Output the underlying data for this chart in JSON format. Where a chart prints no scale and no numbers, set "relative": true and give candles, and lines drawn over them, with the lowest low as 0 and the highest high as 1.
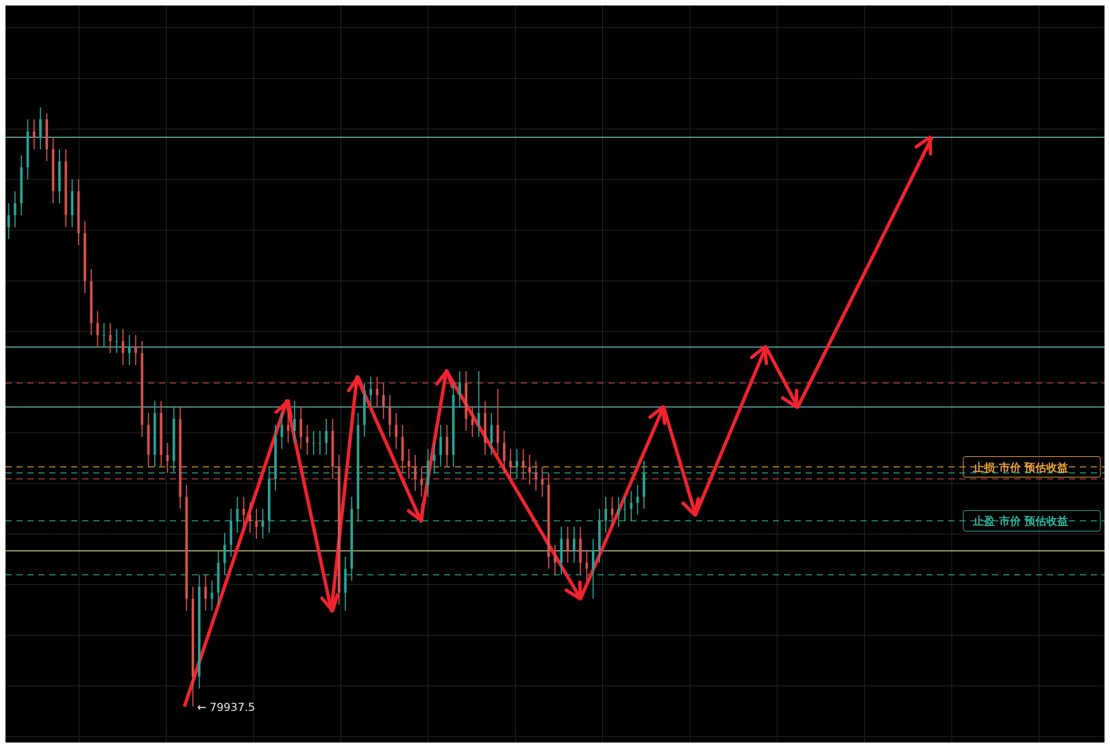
{
  "chart_data": {
    "type": "candlestick",
    "relative": true,
    "tick_labels": false,
    "grid": true,
    "categories": [
      null,
      null,
      null,
      null,
      null,
      null,
      null,
      null,
      null,
      null,
      null,
      null,
      null,
      null,
      null,
      null,
      null,
      null,
      null,
      null,
      null,
      null,
      null,
      null,
      null,
      null,
      null,
      null,
      null,
      null,
      null,
      null,
      null,
      null,
      null,
      null,
      null,
      null,
      null,
      null,
      null,
      null,
      null,
      null,
      null,
      null,
      null,
      null,
      null,
      null,
      null,
      null,
      null,
      null,
      null,
      null,
      null,
      null,
      null,
      null,
      null,
      null,
      null,
      null,
      null,
      null,
      null,
      null,
      null,
      null,
      null,
      null,
      null,
      null,
      null,
      null,
      null,
      null,
      null,
      null,
      null,
      null,
      null,
      null,
      null,
      null,
      null,
      null,
      null,
      null,
      null,
      null,
      null,
      null,
      null,
      null,
      null,
      null,
      null,
      null,
      null,
      null,
      null,
      null,
      null,
      null,
      null,
      null,
      null,
      null,
      null,
      null,
      null,
      null,
      null,
      null,
      null,
      null,
      null,
      null,
      null,
      null,
      null,
      null,
      null,
      null,
      null,
      null,
      null,
      null,
      null,
      null,
      null,
      null,
      null,
      null,
      null,
      null,
      null,
      null,
      null,
      null,
      null,
      null,
      null,
      null,
      null,
      null,
      null,
      null,
      null,
      null,
      null,
      null,
      null,
      null,
      null,
      null,
      null,
      null,
      null,
      null,
      null,
      null,
      null,
      null,
      null,
      null,
      null,
      null,
      null,
      null,
      null
    ],
    "ohlc": [
      [
        0.8,
        0.84,
        0.78,
        0.82
      ],
      [
        0.82,
        0.86,
        0.8,
        0.84
      ],
      [
        0.84,
        0.92,
        0.82,
        0.9
      ],
      [
        0.9,
        0.98,
        0.88,
        0.96
      ],
      [
        0.96,
        0.98,
        0.93,
        0.95
      ],
      [
        0.95,
        1.0,
        0.93,
        0.98
      ],
      [
        0.98,
        0.99,
        0.91,
        0.93
      ],
      [
        0.93,
        0.95,
        0.84,
        0.86
      ],
      [
        0.86,
        0.93,
        0.84,
        0.91
      ],
      [
        0.91,
        0.93,
        0.8,
        0.82
      ],
      [
        0.82,
        0.88,
        0.8,
        0.86
      ],
      [
        0.86,
        0.88,
        0.77,
        0.79
      ],
      [
        0.79,
        0.81,
        0.69,
        0.71
      ],
      [
        0.71,
        0.73,
        0.62,
        0.64
      ],
      [
        0.64,
        0.66,
        0.6,
        0.62
      ],
      [
        0.62,
        0.64,
        0.6,
        0.62
      ],
      [
        0.62,
        0.64,
        0.59,
        0.61
      ],
      [
        0.61,
        0.63,
        0.59,
        0.61
      ],
      [
        0.61,
        0.63,
        0.57,
        0.59
      ],
      [
        0.59,
        0.62,
        0.57,
        0.6
      ],
      [
        0.6,
        0.62,
        0.57,
        0.59
      ],
      [
        0.59,
        0.61,
        0.45,
        0.47
      ],
      [
        0.47,
        0.49,
        0.4,
        0.42
      ],
      [
        0.42,
        0.51,
        0.4,
        0.49
      ],
      [
        0.49,
        0.51,
        0.4,
        0.42
      ],
      [
        0.42,
        0.44,
        0.39,
        0.41
      ],
      [
        0.41,
        0.5,
        0.39,
        0.48
      ],
      [
        0.48,
        0.5,
        0.33,
        0.35
      ],
      [
        0.35,
        0.37,
        0.16,
        0.18
      ],
      [
        0.18,
        0.2,
        0.0,
        0.05
      ],
      [
        0.05,
        0.22,
        0.03,
        0.2
      ],
      [
        0.2,
        0.22,
        0.16,
        0.18
      ],
      [
        0.18,
        0.21,
        0.16,
        0.19
      ],
      [
        0.19,
        0.26,
        0.17,
        0.24
      ],
      [
        0.24,
        0.29,
        0.22,
        0.27
      ],
      [
        0.27,
        0.33,
        0.25,
        0.31
      ],
      [
        0.31,
        0.35,
        0.29,
        0.33
      ],
      [
        0.33,
        0.35,
        0.3,
        0.32
      ],
      [
        0.32,
        0.34,
        0.29,
        0.31
      ],
      [
        0.31,
        0.33,
        0.28,
        0.3
      ],
      [
        0.3,
        0.33,
        0.28,
        0.31
      ],
      [
        0.31,
        0.4,
        0.29,
        0.38
      ],
      [
        0.38,
        0.47,
        0.36,
        0.45
      ],
      [
        0.45,
        0.49,
        0.43,
        0.47
      ],
      [
        0.47,
        0.49,
        0.44,
        0.46
      ],
      [
        0.46,
        0.51,
        0.44,
        0.48
      ],
      [
        0.48,
        0.5,
        0.43,
        0.45
      ],
      [
        0.45,
        0.47,
        0.42,
        0.44
      ],
      [
        0.44,
        0.46,
        0.42,
        0.44
      ],
      [
        0.44,
        0.46,
        0.42,
        0.44
      ],
      [
        0.44,
        0.48,
        0.42,
        0.46
      ],
      [
        0.46,
        0.48,
        0.38,
        0.4
      ],
      [
        0.4,
        0.42,
        0.17,
        0.19
      ],
      [
        0.19,
        0.25,
        0.16,
        0.23
      ],
      [
        0.23,
        0.35,
        0.21,
        0.33
      ],
      [
        0.33,
        0.49,
        0.31,
        0.47
      ],
      [
        0.47,
        0.54,
        0.45,
        0.52
      ],
      [
        0.52,
        0.55,
        0.5,
        0.53
      ],
      [
        0.53,
        0.55,
        0.5,
        0.52
      ],
      [
        0.52,
        0.54,
        0.48,
        0.5
      ],
      [
        0.5,
        0.52,
        0.45,
        0.47
      ],
      [
        0.47,
        0.49,
        0.43,
        0.45
      ],
      [
        0.45,
        0.47,
        0.39,
        0.41
      ],
      [
        0.41,
        0.43,
        0.38,
        0.4
      ],
      [
        0.4,
        0.42,
        0.36,
        0.38
      ],
      [
        0.38,
        0.4,
        0.35,
        0.37
      ],
      [
        0.37,
        0.43,
        0.35,
        0.41
      ],
      [
        0.41,
        0.44,
        0.39,
        0.42
      ],
      [
        0.42,
        0.47,
        0.4,
        0.45
      ],
      [
        0.45,
        0.47,
        0.4,
        0.42
      ],
      [
        0.42,
        0.54,
        0.4,
        0.52
      ],
      [
        0.52,
        0.56,
        0.5,
        0.54
      ],
      [
        0.54,
        0.56,
        0.46,
        0.48
      ],
      [
        0.48,
        0.5,
        0.45,
        0.47
      ],
      [
        0.47,
        0.56,
        0.45,
        0.49
      ],
      [
        0.49,
        0.51,
        0.42,
        0.44
      ],
      [
        0.44,
        0.49,
        0.42,
        0.47
      ],
      [
        0.47,
        0.53,
        0.42,
        0.44
      ],
      [
        0.44,
        0.46,
        0.39,
        0.41
      ],
      [
        0.41,
        0.43,
        0.38,
        0.4
      ],
      [
        0.4,
        0.43,
        0.38,
        0.41
      ],
      [
        0.41,
        0.43,
        0.38,
        0.4
      ],
      [
        0.4,
        0.42,
        0.37,
        0.39
      ],
      [
        0.39,
        0.41,
        0.36,
        0.38
      ],
      [
        0.38,
        0.4,
        0.35,
        0.37
      ],
      [
        0.37,
        0.39,
        0.23,
        0.25
      ],
      [
        0.25,
        0.27,
        0.22,
        0.24
      ],
      [
        0.24,
        0.3,
        0.22,
        0.28
      ],
      [
        0.28,
        0.3,
        0.24,
        0.26
      ],
      [
        0.26,
        0.3,
        0.24,
        0.28
      ],
      [
        0.28,
        0.3,
        0.22,
        0.24
      ],
      [
        0.24,
        0.26,
        0.21,
        0.23
      ],
      [
        0.23,
        0.28,
        0.18,
        0.26
      ],
      [
        0.26,
        0.33,
        0.24,
        0.31
      ],
      [
        0.31,
        0.35,
        0.29,
        0.33
      ],
      [
        0.33,
        0.35,
        0.3,
        0.32
      ],
      [
        0.32,
        0.35,
        0.3,
        0.33
      ],
      [
        0.33,
        0.35,
        0.31,
        0.33
      ],
      [
        0.33,
        0.36,
        0.31,
        0.34
      ],
      [
        0.34,
        0.37,
        0.32,
        0.35
      ],
      [
        0.35,
        0.41,
        0.33,
        0.39
      ],
      null,
      null,
      null,
      null,
      null,
      null,
      null,
      null,
      null,
      null,
      null,
      null,
      null,
      null,
      null,
      null,
      null,
      null,
      null,
      null,
      null,
      null,
      null,
      null,
      null,
      null,
      null,
      null,
      null,
      null,
      null,
      null,
      null,
      null,
      null,
      null,
      null,
      null,
      null,
      null,
      null,
      null,
      null,
      null,
      null,
      null,
      null,
      null,
      null,
      null,
      null,
      null,
      null,
      null,
      null,
      null,
      null,
      null,
      null,
      null,
      null,
      null,
      null,
      null,
      null,
      null,
      null,
      null,
      null,
      null,
      null,
      null
    ],
    "ref_lines": [
      {
        "axis": "y",
        "value": 0.95,
        "color": "#7fd6d6",
        "line_style": "solid"
      },
      {
        "axis": "y",
        "value": 0.6,
        "color": "#7fd6d6",
        "line_style": "solid"
      },
      {
        "axis": "y",
        "value": 0.5,
        "color": "#7fd6d6",
        "line_style": "solid"
      },
      {
        "axis": "y",
        "value": 0.54,
        "color": "#c84848",
        "line_style": "dashed"
      },
      {
        "axis": "y",
        "value": 0.4,
        "color": "#e8a33c",
        "line_style": "dashed",
        "label": "止损  市价  预估收益"
      },
      {
        "axis": "y",
        "value": 0.39,
        "color": "#2bb39a",
        "line_style": "dashed"
      },
      {
        "axis": "y",
        "value": 0.38,
        "color": "#c84848",
        "line_style": "dashed"
      },
      {
        "axis": "y",
        "value": 0.31,
        "color": "#2bb39a",
        "line_style": "dashed",
        "label": "止盈  市价  预估收益"
      },
      {
        "axis": "y",
        "value": 0.26,
        "color": "#f2e0a0",
        "line_style": "solid"
      },
      {
        "axis": "y",
        "value": 0.22,
        "color": "#2bb39a",
        "line_style": "dashed"
      }
    ],
    "series": [
      {
        "type": "line",
        "color": "#f0232f",
        "values": [
          null,
          null,
          null,
          null,
          null,
          null,
          null,
          null,
          null,
          null,
          null,
          null,
          null,
          null,
          null,
          null,
          null,
          null,
          null,
          null,
          null,
          null,
          null,
          null,
          null,
          null,
          null,
          null,
          0.0,
          null,
          null,
          null,
          null,
          null,
          null,
          null,
          null,
          null,
          null,
          null,
          null,
          null,
          null,
          null,
          0.51,
          null,
          null,
          null,
          null,
          null,
          null,
          0.16,
          null,
          null,
          null,
          0.55,
          null,
          null,
          null,
          null,
          null,
          null,
          null,
          null,
          null,
          0.31,
          null,
          null,
          null,
          0.56,
          null,
          null,
          null,
          null,
          null,
          null,
          null,
          null,
          null,
          null,
          null,
          null,
          null,
          null,
          null,
          null,
          null,
          null,
          null,
          null,
          0.18,
          null,
          null,
          null,
          null,
          null,
          null,
          null,
          null,
          null,
          null,
          null,
          null,
          0.5,
          null,
          null,
          null,
          null,
          0.32,
          null,
          null,
          null,
          null,
          null,
          null,
          null,
          null,
          null,
          null,
          0.6,
          null,
          null,
          null,
          null,
          0.5,
          null,
          null,
          null,
          null,
          null,
          null,
          null,
          null,
          null,
          null,
          null,
          null,
          null,
          null,
          null,
          null,
          null,
          null,
          null,
          null,
          0.95,
          null,
          null,
          null,
          null,
          null,
          null,
          null,
          null,
          null,
          null,
          null,
          null,
          null,
          null,
          null,
          null,
          null,
          null,
          null,
          null,
          null,
          null,
          null,
          null,
          null,
          null,
          null
        ]
      }
    ],
    "annotations": [
      "← 79937.5"
    ]
  }
}
